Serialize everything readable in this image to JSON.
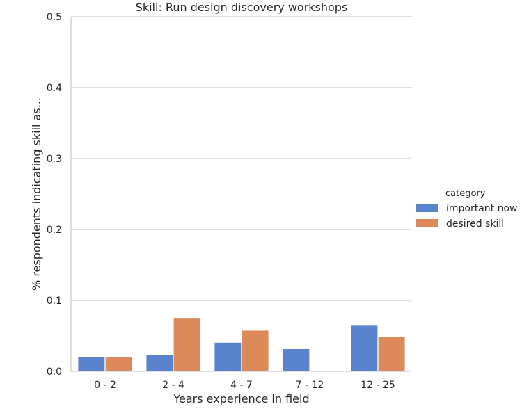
{
  "chart_data": {
    "type": "bar",
    "title": "Skill: Run design discovery workshops",
    "xlabel": "Years experience in field",
    "ylabel": "% respondents indicating skill as...",
    "categories": [
      "0 - 2",
      "2 - 4",
      "4 - 7",
      "7 - 12",
      "12 - 25"
    ],
    "series": [
      {
        "name": "important now",
        "color": "#5a83cd",
        "values": [
          0.021,
          0.024,
          0.041,
          0.032,
          0.065
        ]
      },
      {
        "name": "desired skill",
        "color": "#dd8a5b",
        "values": [
          0.021,
          0.075,
          0.058,
          0.0,
          0.049
        ]
      }
    ],
    "ylim": [
      0,
      0.5
    ],
    "yticks": [
      "0.0",
      "0.1",
      "0.2",
      "0.3",
      "0.4",
      "0.5"
    ],
    "grid": true,
    "legend": {
      "title": "category",
      "position": "right"
    }
  }
}
